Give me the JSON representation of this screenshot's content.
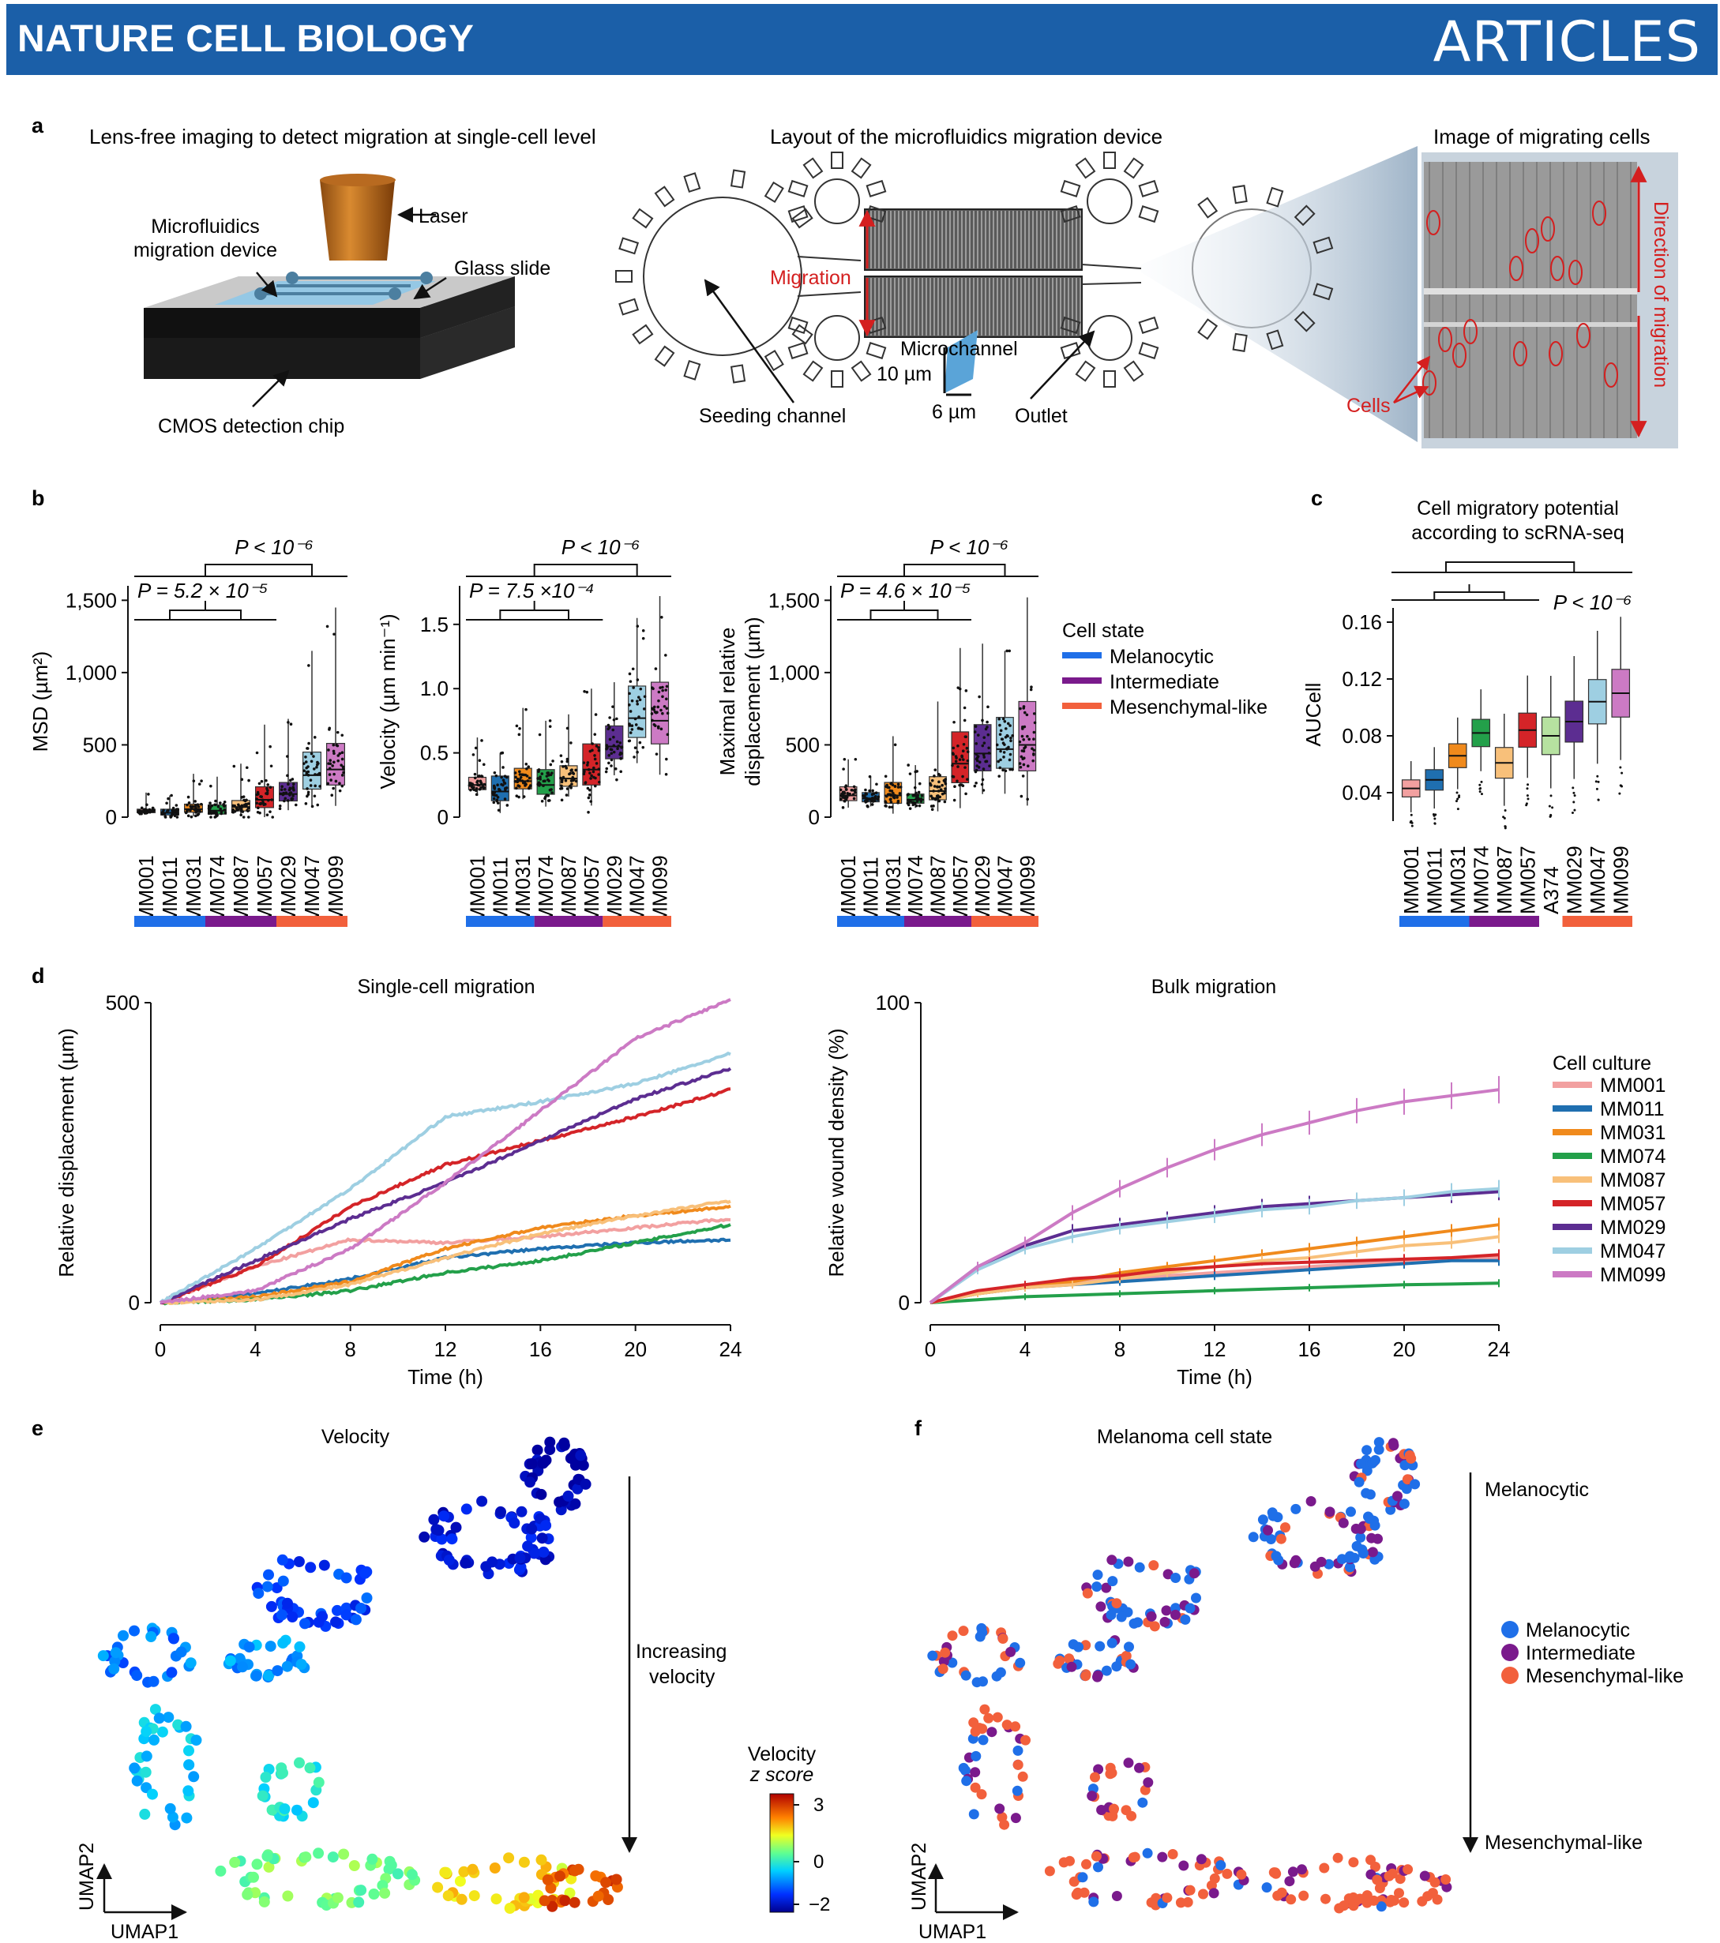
{
  "header": {
    "journal": "NATURE CELL BIOLOGY",
    "section": "ARTICLES"
  },
  "panel_a": {
    "label": "a",
    "title1": "Lens-free imaging to detect migration at single-cell level",
    "title2": "Layout of the microfluidics migration device",
    "title3": "Image of migrating cells",
    "laser": "Laser",
    "device": [
      "Microfluidics",
      "migration device"
    ],
    "glass": "Glass slide",
    "cmos": "CMOS detection chip",
    "migration": "Migration",
    "microchannel": "Microchannel",
    "dim10": "10 µm",
    "dim6": "6 µm",
    "seeding": "Seeding channel",
    "outlet": "Outlet",
    "cells": "Cells",
    "direction": "Direction of migration"
  },
  "panel_b": {
    "label": "b",
    "samples": [
      "MM001",
      "MM011",
      "MM031",
      "MM074",
      "MM087",
      "MM057",
      "MM029",
      "MM047",
      "MM099"
    ],
    "msd": {
      "ylabel": "MSD (µm²)",
      "yticks": [
        "0",
        "500",
        "1,000",
        "1,500"
      ],
      "p_top": "P < 10⁻⁶",
      "p_inner": "P = 5.2 × 10⁻⁵",
      "medians": [
        40,
        30,
        55,
        45,
        70,
        120,
        160,
        290,
        330
      ]
    },
    "vel": {
      "ylabel": "Velocity (µm min⁻¹)",
      "yticks": [
        "0",
        "0.5",
        "1.0",
        "1.5"
      ],
      "p_top": "P < 10⁻⁶",
      "p_inner": "P = 7.5 ×10⁻⁴",
      "medians": [
        0.25,
        0.2,
        0.28,
        0.25,
        0.3,
        0.37,
        0.55,
        0.77,
        0.75
      ]
    },
    "mrd": {
      "ylabel": [
        "Maximal relative",
        "displacement (µm)"
      ],
      "yticks": [
        "0",
        "500",
        "1,000",
        "1,500"
      ],
      "p_top": "P < 10⁻⁶",
      "p_inner": "P = 4.6 × 10⁻⁵",
      "medians": [
        150,
        130,
        150,
        120,
        180,
        370,
        440,
        470,
        500
      ]
    },
    "legend": {
      "title": "Cell state",
      "items": [
        "Melanocytic",
        "Intermediate",
        "Mesenchymal-like"
      ]
    }
  },
  "panel_c": {
    "label": "c",
    "title": [
      "Cell migratory potential",
      "according to scRNA-seq"
    ],
    "ylabel": "AUCell",
    "yticks": [
      "0.04",
      "0.08",
      "0.12",
      "0.16"
    ],
    "samples": [
      "MM001",
      "MM011",
      "MM031",
      "MM074",
      "MM087",
      "MM057",
      "A374",
      "MM029",
      "MM047",
      "MM099"
    ],
    "medians": [
      0.043,
      0.049,
      0.066,
      0.082,
      0.061,
      0.084,
      0.08,
      0.09,
      0.104,
      0.11
    ],
    "p": "P < 10⁻⁶"
  },
  "panel_d": {
    "label": "d",
    "left_title": "Single-cell migration",
    "left_ylabel": "Relative displacement (µm)",
    "left_yticks": [
      "0",
      "500"
    ],
    "right_title": "Bulk migration",
    "right_ylabel": "Relative wound density (%)",
    "right_yticks": [
      "0",
      "100"
    ],
    "xlabel": "Time (h)",
    "xticks": [
      "0",
      "4",
      "8",
      "12",
      "16",
      "20",
      "24"
    ],
    "legend_title": "Cell culture"
  },
  "chart_data": [
    {
      "type": "line",
      "title": "Single-cell migration",
      "xlabel": "Time (h)",
      "ylabel": "Relative displacement (µm)",
      "x": [
        0,
        4,
        8,
        12,
        16,
        20,
        24
      ],
      "ylim": [
        0,
        500
      ],
      "series": [
        {
          "name": "MM001",
          "color": "#f2a0a0",
          "values": [
            0,
            60,
            105,
            100,
            110,
            125,
            140
          ]
        },
        {
          "name": "MM011",
          "color": "#1f6fb0",
          "values": [
            0,
            15,
            40,
            75,
            90,
            100,
            105
          ]
        },
        {
          "name": "MM031",
          "color": "#f08a1c",
          "values": [
            0,
            10,
            35,
            90,
            125,
            145,
            160
          ]
        },
        {
          "name": "MM074",
          "color": "#23a04a",
          "values": [
            0,
            5,
            20,
            50,
            70,
            100,
            130
          ]
        },
        {
          "name": "MM087",
          "color": "#f8c07a",
          "values": [
            0,
            5,
            30,
            75,
            115,
            145,
            170
          ]
        },
        {
          "name": "MM057",
          "color": "#d42428",
          "values": [
            0,
            60,
            160,
            230,
            270,
            310,
            355
          ]
        },
        {
          "name": "MM029",
          "color": "#5c2d91",
          "values": [
            0,
            70,
            140,
            200,
            270,
            340,
            390
          ]
        },
        {
          "name": "MM047",
          "color": "#9ecfe2",
          "values": [
            0,
            90,
            190,
            310,
            335,
            365,
            415
          ]
        },
        {
          "name": "MM099",
          "color": "#cc7ac4",
          "values": [
            0,
            20,
            90,
            200,
            320,
            440,
            505
          ]
        }
      ]
    },
    {
      "type": "line",
      "title": "Bulk migration",
      "xlabel": "Time (h)",
      "ylabel": "Relative wound density (%)",
      "x": [
        0,
        2,
        4,
        6,
        8,
        10,
        12,
        14,
        16,
        18,
        20,
        22,
        24
      ],
      "ylim": [
        0,
        100
      ],
      "series": [
        {
          "name": "MM001",
          "color": "#f2a0a0",
          "values": [
            0,
            3,
            5,
            7,
            8,
            9,
            10,
            11,
            12,
            13,
            14,
            15,
            15
          ]
        },
        {
          "name": "MM011",
          "color": "#1f6fb0",
          "values": [
            0,
            3,
            5,
            6,
            7,
            8,
            9,
            10,
            11,
            12,
            13,
            14,
            14
          ]
        },
        {
          "name": "MM031",
          "color": "#f08a1c",
          "values": [
            0,
            3,
            5,
            7,
            10,
            12,
            14,
            16,
            18,
            20,
            22,
            24,
            26
          ]
        },
        {
          "name": "MM074",
          "color": "#23a04a",
          "values": [
            0,
            1,
            2,
            2.5,
            3,
            3.5,
            4,
            4.5,
            5,
            5.5,
            6,
            6.2,
            6.5
          ]
        },
        {
          "name": "MM087",
          "color": "#f8c07a",
          "values": [
            0,
            3,
            5,
            6,
            8,
            10,
            12,
            14,
            15,
            17,
            19,
            20,
            22
          ]
        },
        {
          "name": "MM057",
          "color": "#d42428",
          "values": [
            0,
            4,
            6,
            8,
            9,
            11,
            12,
            13,
            13.5,
            14,
            14.5,
            15,
            16
          ]
        },
        {
          "name": "MM029",
          "color": "#5c2d91",
          "values": [
            0,
            12,
            19,
            24,
            26,
            28,
            30,
            32,
            33,
            34,
            35,
            36,
            37
          ]
        },
        {
          "name": "MM047",
          "color": "#9ecfe2",
          "values": [
            0,
            11,
            18,
            22,
            25,
            27,
            29,
            31,
            32,
            34,
            35,
            37,
            38
          ]
        },
        {
          "name": "MM099",
          "color": "#cc7ac4",
          "values": [
            0,
            12,
            20,
            30,
            38,
            45,
            51,
            56,
            60,
            64,
            67,
            69,
            71
          ]
        }
      ]
    }
  ],
  "panel_e": {
    "label": "e",
    "title": "Velocity",
    "arrow_label": [
      "Increasing",
      "velocity"
    ],
    "cbar_title": [
      "Velocity",
      "z score"
    ],
    "cbar_ticks": [
      "3",
      "0",
      "−2"
    ],
    "umap1": "UMAP1",
    "umap2": "UMAP2"
  },
  "panel_f": {
    "label": "f",
    "title": "Melanoma cell state",
    "top": "Melanocytic",
    "bottom": "Mesenchymal-like",
    "legend": [
      "Melanocytic",
      "Intermediate",
      "Mesenchymal-like"
    ],
    "umap1": "UMAP1",
    "umap2": "UMAP2"
  },
  "colors": {
    "melanocytic": "#1f6fe8",
    "intermediate": "#7a1a8c",
    "mesenchymal": "#f2603c",
    "header": "#1b5fa8",
    "annotation_red": "#d41f1f"
  }
}
